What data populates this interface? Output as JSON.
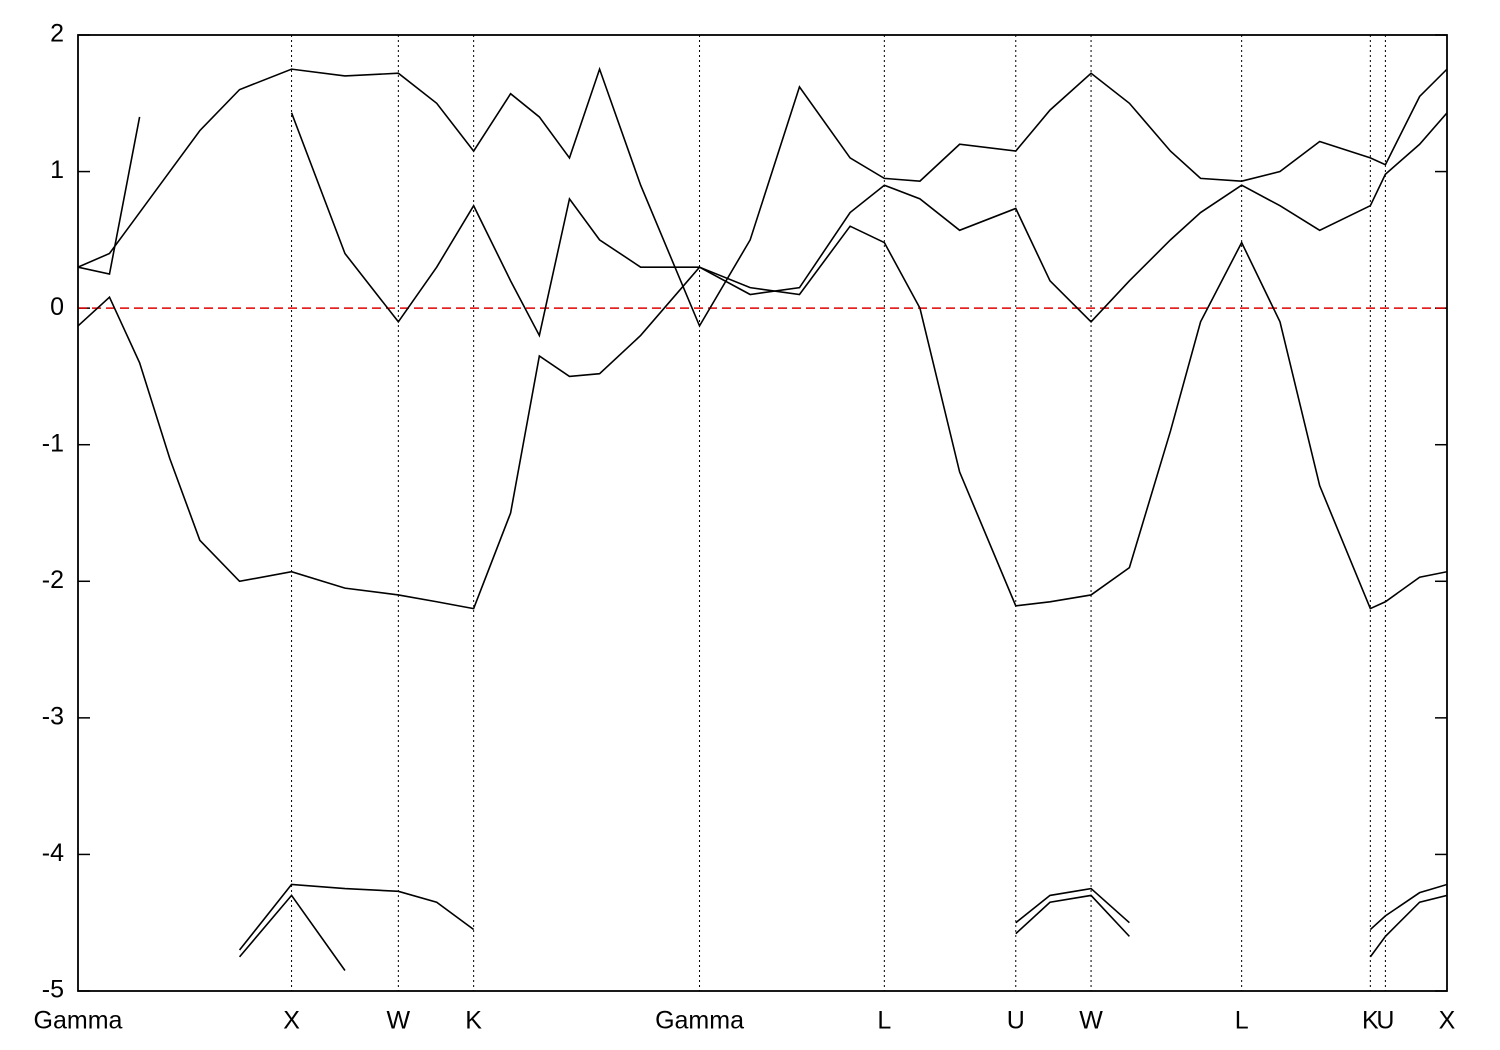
{
  "chart_data": {
    "type": "line",
    "x": [
      0,
      0.023,
      0.045,
      0.067,
      0.089,
      0.118,
      0.156,
      0.195,
      0.234,
      0.262,
      0.289,
      0.316,
      0.337,
      0.359,
      0.381,
      0.411,
      0.454,
      0.491,
      0.527,
      0.564,
      0.589,
      0.615,
      0.644,
      0.685,
      0.71,
      0.74,
      0.768,
      0.798,
      0.82,
      0.85,
      0.878,
      0.907,
      0.944,
      0.955,
      0.98,
      1
    ],
    "series": [
      {
        "color": "#000000",
        "values": [
          -0.13,
          0.08,
          -0.4,
          -1.1,
          -1.7,
          -2.0,
          -1.93,
          -2.05,
          -2.1,
          -2.15,
          -2.2,
          -1.5,
          -0.35,
          -0.5,
          -0.48,
          -0.2,
          0.3,
          0.15,
          0.1,
          0.6,
          0.48,
          0.0,
          -1.2,
          -2.18,
          -2.15,
          -2.1,
          -1.9,
          -0.9,
          -0.1,
          0.48,
          -0.1,
          -1.3,
          -2.2,
          -2.15,
          -1.97,
          -1.93
        ]
      },
      {
        "color": "#000000",
        "values": [
          0.3,
          0.25,
          1.4,
          null,
          null,
          null,
          1.43,
          0.4,
          -0.1,
          0.3,
          0.75,
          0.2,
          -0.2,
          0.8,
          0.5,
          0.3,
          0.3,
          0.1,
          0.15,
          0.7,
          0.9,
          0.8,
          0.57,
          0.73,
          0.2,
          -0.1,
          0.2,
          0.5,
          0.7,
          0.9,
          0.75,
          0.57,
          0.75,
          0.98,
          1.2,
          1.43
        ]
      },
      {
        "color": "#000000",
        "values": [
          0.3,
          0.4,
          0.7,
          1.0,
          1.3,
          1.6,
          1.75,
          1.7,
          1.72,
          1.5,
          1.15,
          1.57,
          1.4,
          1.1,
          1.75,
          0.9,
          -0.13,
          0.5,
          1.62,
          1.1,
          0.95,
          0.93,
          1.2,
          1.15,
          1.45,
          1.72,
          1.5,
          1.15,
          0.95,
          0.93,
          1.0,
          1.22,
          1.1,
          1.05,
          1.55,
          1.75
        ]
      },
      {
        "color": "#000000",
        "values": [
          null,
          null,
          null,
          null,
          null,
          -4.7,
          -4.22,
          -4.25,
          -4.27,
          -4.35,
          -4.55,
          null,
          null,
          null,
          null,
          null,
          null,
          null,
          null,
          null,
          null,
          null,
          null,
          -4.5,
          -4.3,
          -4.25,
          -4.5,
          null,
          null,
          null,
          null,
          null,
          -4.55,
          -4.45,
          -4.28,
          -4.22
        ]
      },
      {
        "color": "#000000",
        "values": [
          null,
          null,
          null,
          null,
          null,
          -4.75,
          -4.3,
          -4.85,
          null,
          null,
          null,
          null,
          null,
          null,
          null,
          null,
          null,
          null,
          null,
          null,
          null,
          null,
          null,
          -4.58,
          -4.35,
          -4.3,
          -4.6,
          null,
          null,
          null,
          null,
          null,
          -4.75,
          -4.6,
          -4.35,
          -4.3
        ]
      }
    ],
    "xlim": [
      0,
      1
    ],
    "xticks": [
      {
        "value": 0,
        "label": "Gamma"
      },
      {
        "value": 0.156,
        "label": "X"
      },
      {
        "value": 0.234,
        "label": "W"
      },
      {
        "value": 0.289,
        "label": "K"
      },
      {
        "value": 0.454,
        "label": "Gamma"
      },
      {
        "value": 0.589,
        "label": "L"
      },
      {
        "value": 0.685,
        "label": "U"
      },
      {
        "value": 0.74,
        "label": "W"
      },
      {
        "value": 0.85,
        "label": "L"
      },
      {
        "value": 0.944,
        "label": "K"
      },
      {
        "value": 0.955,
        "label": "U"
      },
      {
        "value": 1,
        "label": "X"
      }
    ],
    "ylim": [
      -5,
      2
    ],
    "yticks": [
      -5,
      -4,
      -3,
      -2,
      -1,
      0,
      1,
      2
    ],
    "fermi_level": 0,
    "fermi_color": "#e00000"
  }
}
